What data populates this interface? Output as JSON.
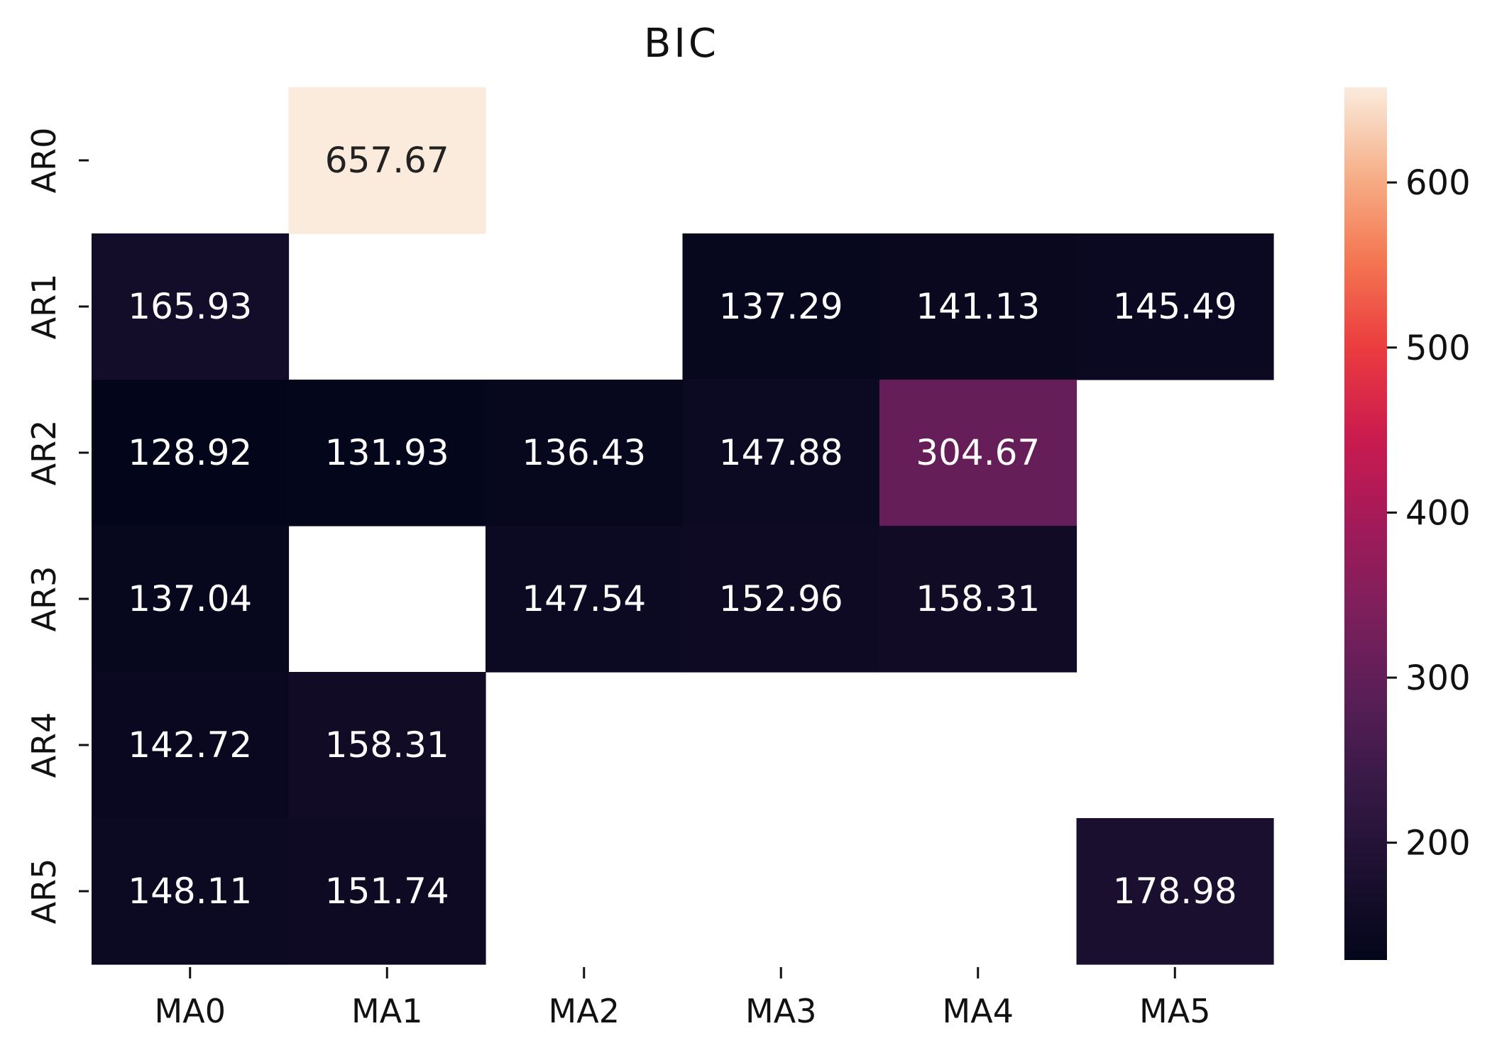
{
  "chart_data": {
    "type": "heatmap",
    "title": "BIC",
    "xlabel": "",
    "ylabel": "",
    "x_categories": [
      "MA0",
      "MA1",
      "MA2",
      "MA3",
      "MA4",
      "MA5"
    ],
    "y_categories": [
      "AR0",
      "AR1",
      "AR2",
      "AR3",
      "AR4",
      "AR5"
    ],
    "values": [
      [
        null,
        657.67,
        null,
        null,
        null,
        null
      ],
      [
        165.93,
        null,
        null,
        137.29,
        141.13,
        145.49
      ],
      [
        128.92,
        131.93,
        136.43,
        147.88,
        304.67,
        null
      ],
      [
        137.04,
        null,
        147.54,
        152.96,
        158.31,
        null
      ],
      [
        142.72,
        158.31,
        null,
        null,
        null,
        null
      ],
      [
        148.11,
        151.74,
        null,
        null,
        null,
        178.98
      ]
    ],
    "value_format": "2 decimals",
    "colormap": "rocket",
    "colorbar": {
      "range": [
        128.92,
        657.67
      ],
      "ticks": [
        200,
        300,
        400,
        500,
        600
      ]
    }
  }
}
